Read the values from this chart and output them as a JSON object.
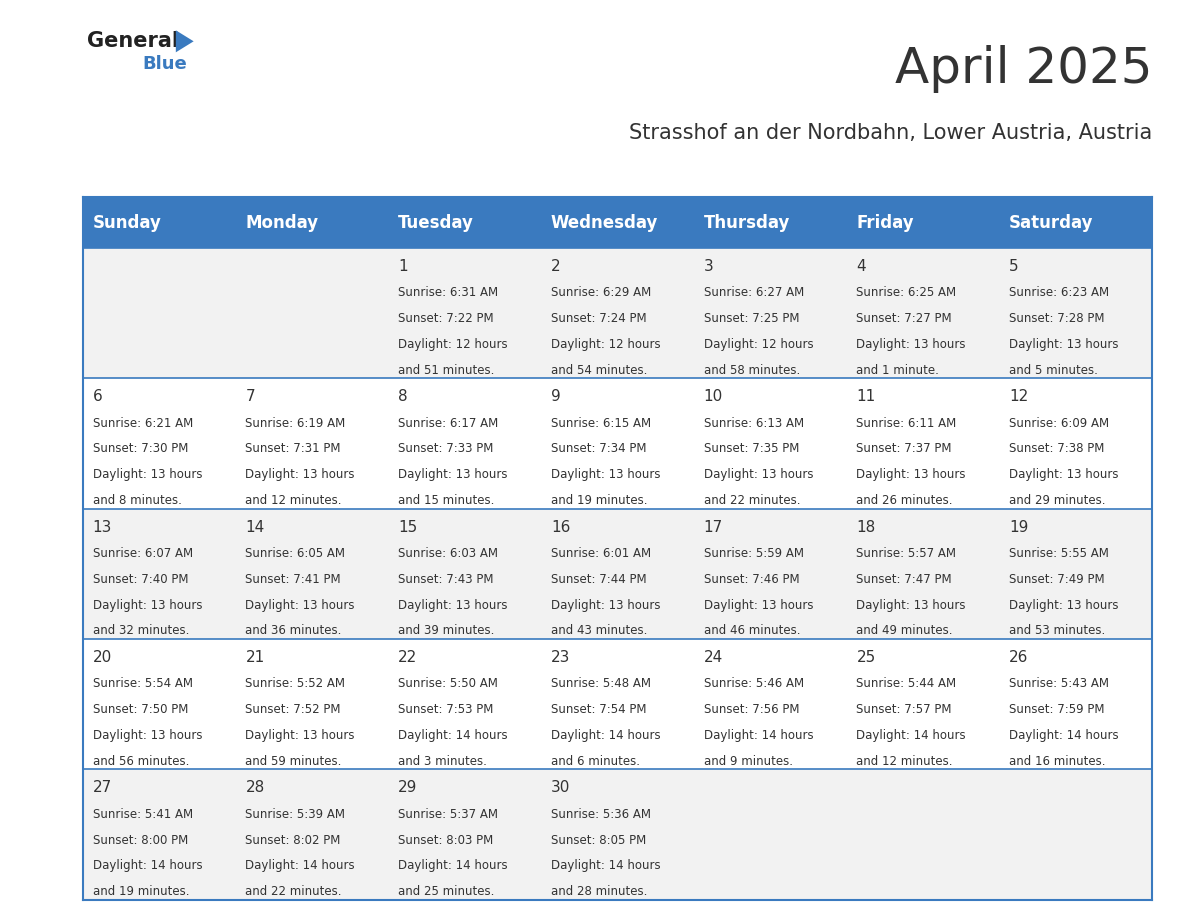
{
  "title": "April 2025",
  "subtitle": "Strasshof an der Nordbahn, Lower Austria, Austria",
  "header_bg": "#3a7abf",
  "header_text": "#ffffff",
  "row_bg_light": "#f2f2f2",
  "row_bg_white": "#ffffff",
  "border_color": "#3a7abf",
  "text_color": "#333333",
  "days_of_week": [
    "Sunday",
    "Monday",
    "Tuesday",
    "Wednesday",
    "Thursday",
    "Friday",
    "Saturday"
  ],
  "weeks": [
    [
      {
        "day": "",
        "sunrise": "",
        "sunset": "",
        "daylight": ""
      },
      {
        "day": "",
        "sunrise": "",
        "sunset": "",
        "daylight": ""
      },
      {
        "day": "1",
        "sunrise": "Sunrise: 6:31 AM",
        "sunset": "Sunset: 7:22 PM",
        "daylight": "Daylight: 12 hours\nand 51 minutes."
      },
      {
        "day": "2",
        "sunrise": "Sunrise: 6:29 AM",
        "sunset": "Sunset: 7:24 PM",
        "daylight": "Daylight: 12 hours\nand 54 minutes."
      },
      {
        "day": "3",
        "sunrise": "Sunrise: 6:27 AM",
        "sunset": "Sunset: 7:25 PM",
        "daylight": "Daylight: 12 hours\nand 58 minutes."
      },
      {
        "day": "4",
        "sunrise": "Sunrise: 6:25 AM",
        "sunset": "Sunset: 7:27 PM",
        "daylight": "Daylight: 13 hours\nand 1 minute."
      },
      {
        "day": "5",
        "sunrise": "Sunrise: 6:23 AM",
        "sunset": "Sunset: 7:28 PM",
        "daylight": "Daylight: 13 hours\nand 5 minutes."
      }
    ],
    [
      {
        "day": "6",
        "sunrise": "Sunrise: 6:21 AM",
        "sunset": "Sunset: 7:30 PM",
        "daylight": "Daylight: 13 hours\nand 8 minutes."
      },
      {
        "day": "7",
        "sunrise": "Sunrise: 6:19 AM",
        "sunset": "Sunset: 7:31 PM",
        "daylight": "Daylight: 13 hours\nand 12 minutes."
      },
      {
        "day": "8",
        "sunrise": "Sunrise: 6:17 AM",
        "sunset": "Sunset: 7:33 PM",
        "daylight": "Daylight: 13 hours\nand 15 minutes."
      },
      {
        "day": "9",
        "sunrise": "Sunrise: 6:15 AM",
        "sunset": "Sunset: 7:34 PM",
        "daylight": "Daylight: 13 hours\nand 19 minutes."
      },
      {
        "day": "10",
        "sunrise": "Sunrise: 6:13 AM",
        "sunset": "Sunset: 7:35 PM",
        "daylight": "Daylight: 13 hours\nand 22 minutes."
      },
      {
        "day": "11",
        "sunrise": "Sunrise: 6:11 AM",
        "sunset": "Sunset: 7:37 PM",
        "daylight": "Daylight: 13 hours\nand 26 minutes."
      },
      {
        "day": "12",
        "sunrise": "Sunrise: 6:09 AM",
        "sunset": "Sunset: 7:38 PM",
        "daylight": "Daylight: 13 hours\nand 29 minutes."
      }
    ],
    [
      {
        "day": "13",
        "sunrise": "Sunrise: 6:07 AM",
        "sunset": "Sunset: 7:40 PM",
        "daylight": "Daylight: 13 hours\nand 32 minutes."
      },
      {
        "day": "14",
        "sunrise": "Sunrise: 6:05 AM",
        "sunset": "Sunset: 7:41 PM",
        "daylight": "Daylight: 13 hours\nand 36 minutes."
      },
      {
        "day": "15",
        "sunrise": "Sunrise: 6:03 AM",
        "sunset": "Sunset: 7:43 PM",
        "daylight": "Daylight: 13 hours\nand 39 minutes."
      },
      {
        "day": "16",
        "sunrise": "Sunrise: 6:01 AM",
        "sunset": "Sunset: 7:44 PM",
        "daylight": "Daylight: 13 hours\nand 43 minutes."
      },
      {
        "day": "17",
        "sunrise": "Sunrise: 5:59 AM",
        "sunset": "Sunset: 7:46 PM",
        "daylight": "Daylight: 13 hours\nand 46 minutes."
      },
      {
        "day": "18",
        "sunrise": "Sunrise: 5:57 AM",
        "sunset": "Sunset: 7:47 PM",
        "daylight": "Daylight: 13 hours\nand 49 minutes."
      },
      {
        "day": "19",
        "sunrise": "Sunrise: 5:55 AM",
        "sunset": "Sunset: 7:49 PM",
        "daylight": "Daylight: 13 hours\nand 53 minutes."
      }
    ],
    [
      {
        "day": "20",
        "sunrise": "Sunrise: 5:54 AM",
        "sunset": "Sunset: 7:50 PM",
        "daylight": "Daylight: 13 hours\nand 56 minutes."
      },
      {
        "day": "21",
        "sunrise": "Sunrise: 5:52 AM",
        "sunset": "Sunset: 7:52 PM",
        "daylight": "Daylight: 13 hours\nand 59 minutes."
      },
      {
        "day": "22",
        "sunrise": "Sunrise: 5:50 AM",
        "sunset": "Sunset: 7:53 PM",
        "daylight": "Daylight: 14 hours\nand 3 minutes."
      },
      {
        "day": "23",
        "sunrise": "Sunrise: 5:48 AM",
        "sunset": "Sunset: 7:54 PM",
        "daylight": "Daylight: 14 hours\nand 6 minutes."
      },
      {
        "day": "24",
        "sunrise": "Sunrise: 5:46 AM",
        "sunset": "Sunset: 7:56 PM",
        "daylight": "Daylight: 14 hours\nand 9 minutes."
      },
      {
        "day": "25",
        "sunrise": "Sunrise: 5:44 AM",
        "sunset": "Sunset: 7:57 PM",
        "daylight": "Daylight: 14 hours\nand 12 minutes."
      },
      {
        "day": "26",
        "sunrise": "Sunrise: 5:43 AM",
        "sunset": "Sunset: 7:59 PM",
        "daylight": "Daylight: 14 hours\nand 16 minutes."
      }
    ],
    [
      {
        "day": "27",
        "sunrise": "Sunrise: 5:41 AM",
        "sunset": "Sunset: 8:00 PM",
        "daylight": "Daylight: 14 hours\nand 19 minutes."
      },
      {
        "day": "28",
        "sunrise": "Sunrise: 5:39 AM",
        "sunset": "Sunset: 8:02 PM",
        "daylight": "Daylight: 14 hours\nand 22 minutes."
      },
      {
        "day": "29",
        "sunrise": "Sunrise: 5:37 AM",
        "sunset": "Sunset: 8:03 PM",
        "daylight": "Daylight: 14 hours\nand 25 minutes."
      },
      {
        "day": "30",
        "sunrise": "Sunrise: 5:36 AM",
        "sunset": "Sunset: 8:05 PM",
        "daylight": "Daylight: 14 hours\nand 28 minutes."
      },
      {
        "day": "",
        "sunrise": "",
        "sunset": "",
        "daylight": ""
      },
      {
        "day": "",
        "sunrise": "",
        "sunset": "",
        "daylight": ""
      },
      {
        "day": "",
        "sunrise": "",
        "sunset": "",
        "daylight": ""
      }
    ]
  ],
  "logo_general_color": "#222222",
  "logo_blue_color": "#3a7abf",
  "logo_triangle_color": "#3a7abf"
}
